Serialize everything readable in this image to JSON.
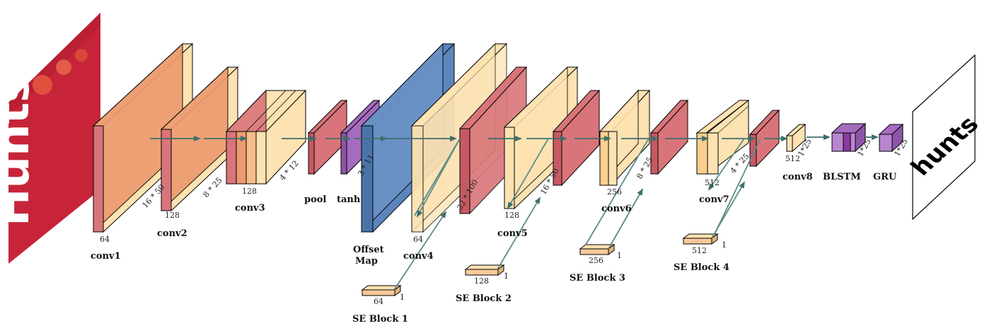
{
  "colors": {
    "conv_red": "#d9757a",
    "conv_orange": "#ec9b6e",
    "cream": "#fde2b2",
    "offset_blue": "#5a86bd",
    "purple": "#a66bc0",
    "flow_teal": "#3d6f6a",
    "se_teal": "#5b8c86"
  },
  "input": {
    "word": "Hunts"
  },
  "output": {
    "word": "hunts"
  },
  "layers": {
    "conv1": {
      "label": "conv1",
      "channels": "64"
    },
    "conv2": {
      "label": "conv2",
      "channels": "128",
      "size_in": "16 * 50",
      "size_out": "8 * 25"
    },
    "conv3": {
      "label": "conv3",
      "channels": "128",
      "size": "4 * 12"
    },
    "pool": {
      "label": "pool"
    },
    "tanh": {
      "label": "tanh",
      "size": "3 * 11"
    },
    "offset": {
      "label_line1": "Offset",
      "label_line2": "Map"
    },
    "conv4": {
      "label": "conv4",
      "channels": "64",
      "size": "32 * 100"
    },
    "conv5": {
      "label": "conv5",
      "channels": "128",
      "size": "16 * 50"
    },
    "conv6": {
      "label": "conv6",
      "channels": "256",
      "size": "8 * 25"
    },
    "conv7": {
      "label": "conv7",
      "channels": "512",
      "size": "4 * 25"
    },
    "conv8": {
      "label": "conv8",
      "channels": "512",
      "size": "1*25"
    },
    "blstm": {
      "label": "BLSTM",
      "size": "1*25"
    },
    "gru": {
      "label": "GRU",
      "size": "1*25"
    }
  },
  "se_blocks": [
    {
      "label": "SE Block 1",
      "channels": "64",
      "size": "1"
    },
    {
      "label": "SE Block 2",
      "channels": "128",
      "size": "1"
    },
    {
      "label": "SE Block 3",
      "channels": "256",
      "size": "1"
    },
    {
      "label": "SE Block 4",
      "channels": "512",
      "size": "1"
    }
  ]
}
